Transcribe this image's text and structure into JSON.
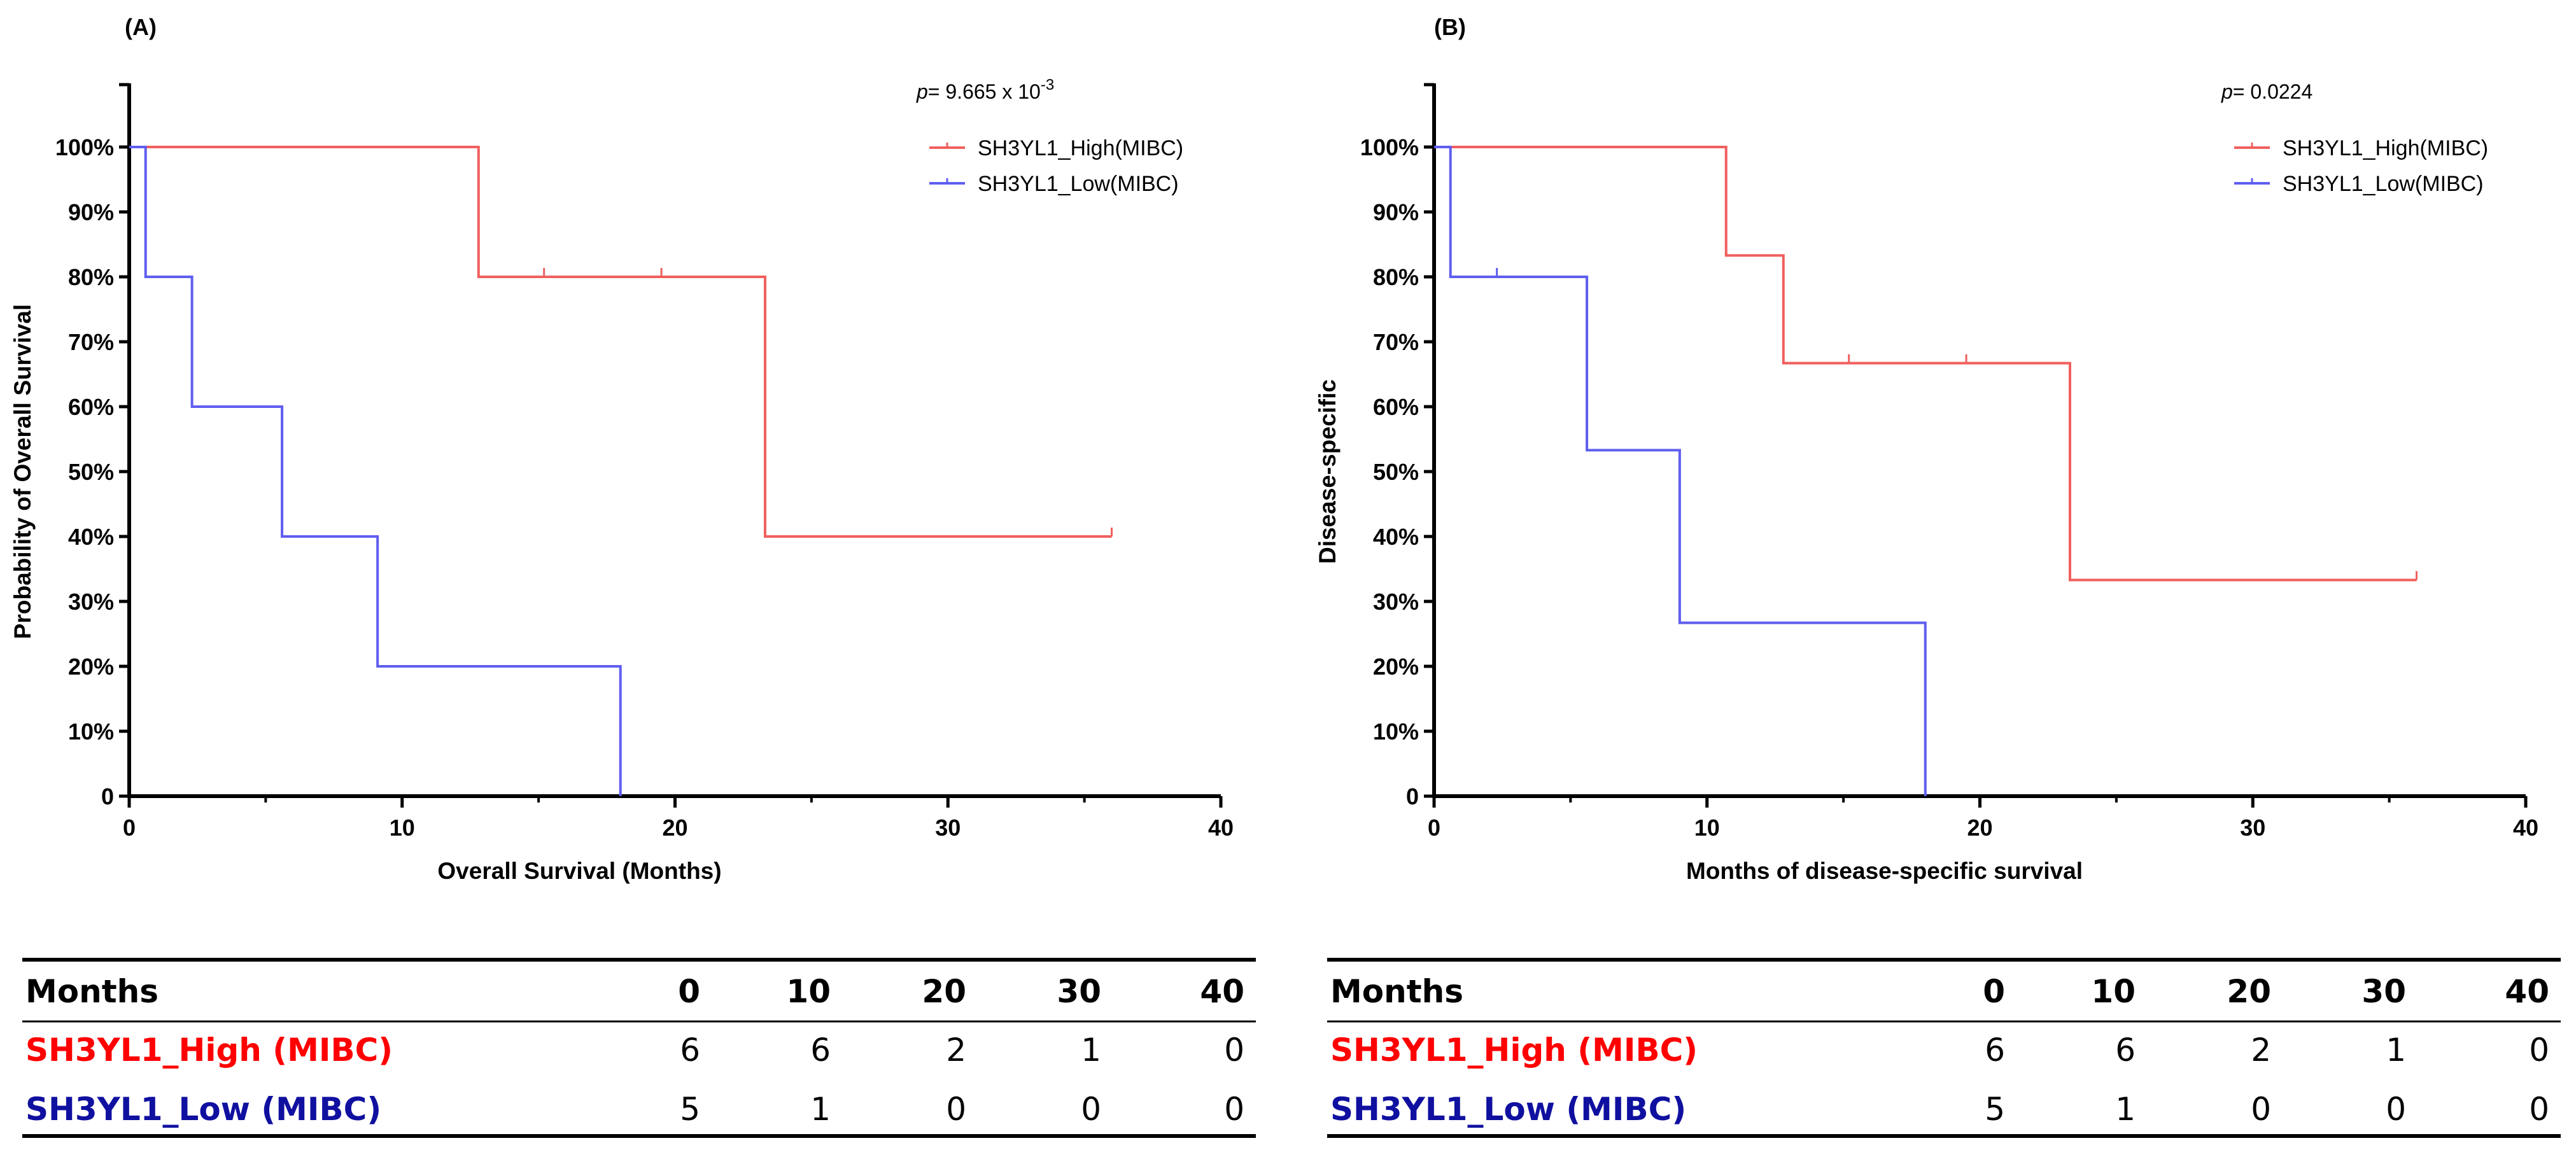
{
  "colors": {
    "high": "#f0605e",
    "low": "#5f5ef0",
    "table_high": "#ff0000",
    "table_low": "#1010a0",
    "axis": "#000000"
  },
  "chart_data": [
    {
      "type": "line",
      "panel_label": "(A)",
      "xlabel": "Overall Survival (Months)",
      "ylabel": "Probability of Overall Survival",
      "xlim": [
        0,
        40
      ],
      "ylim": [
        0,
        100
      ],
      "x_ticks": [
        "0",
        "10",
        "20",
        "30",
        "40"
      ],
      "y_ticks": [
        "0",
        "10%",
        "20%",
        "30%",
        "40%",
        "50%",
        "60%",
        "70%",
        "80%",
        "90%",
        "100%"
      ],
      "p_label": "p",
      "p_value_text": "= 9.665 x 10",
      "p_value_exp": "-3",
      "legend_position": "top-right",
      "grid": false,
      "series": [
        {
          "name": "SH3YL1_High(MIBC)",
          "color": "high",
          "steps": [
            [
              0,
              100
            ],
            [
              12.8,
              80
            ],
            [
              23.3,
              40
            ],
            [
              36,
              40
            ]
          ],
          "censor": [
            [
              15.2,
              80
            ],
            [
              19.5,
              80
            ],
            [
              36,
              40
            ]
          ]
        },
        {
          "name": "SH3YL1_Low(MIBC)",
          "color": "low",
          "steps": [
            [
              0,
              100
            ],
            [
              0.6,
              80
            ],
            [
              2.3,
              60
            ],
            [
              5.6,
              40
            ],
            [
              9.1,
              20
            ],
            [
              18,
              0
            ],
            [
              18,
              0
            ]
          ],
          "censor": [
            [
              0.6,
              80
            ],
            [
              2.3,
              60
            ],
            [
              9.1,
              20
            ]
          ]
        }
      ]
    },
    {
      "type": "line",
      "panel_label": "(B)",
      "xlabel": "Months of disease-specific survival",
      "ylabel": "Disease-specific",
      "xlim": [
        0,
        40
      ],
      "ylim": [
        0,
        100
      ],
      "x_ticks": [
        "0",
        "10",
        "20",
        "30",
        "40"
      ],
      "y_ticks": [
        "0",
        "10%",
        "20%",
        "30%",
        "40%",
        "50%",
        "60%",
        "70%",
        "80%",
        "90%",
        "100%"
      ],
      "p_label": "p",
      "p_value_text": "= 0.0224",
      "p_value_exp": "",
      "legend_position": "top-right",
      "grid": false,
      "series": [
        {
          "name": "SH3YL1_High(MIBC)",
          "color": "high",
          "steps": [
            [
              0,
              100
            ],
            [
              10.7,
              83.3
            ],
            [
              12.8,
              66.7
            ],
            [
              23.3,
              33.3
            ],
            [
              36,
              33.3
            ]
          ],
          "censor": [
            [
              15.2,
              66.7
            ],
            [
              19.5,
              66.7
            ],
            [
              36,
              33.3
            ]
          ]
        },
        {
          "name": "SH3YL1_Low(MIBC)",
          "color": "low",
          "steps": [
            [
              0,
              100
            ],
            [
              0.6,
              80
            ],
            [
              5.6,
              53.3
            ],
            [
              9.0,
              26.7
            ],
            [
              18,
              0
            ],
            [
              18,
              0
            ]
          ],
          "censor": [
            [
              2.3,
              80
            ],
            [
              9.0,
              26.7
            ]
          ]
        }
      ]
    }
  ],
  "risk_tables": [
    {
      "header": [
        "Months",
        "0",
        "10",
        "20",
        "30",
        "40"
      ],
      "rows": [
        {
          "label": "SH3YL1_High (MIBC)",
          "color": "table_high",
          "values": [
            "6",
            "6",
            "2",
            "1",
            "0"
          ]
        },
        {
          "label": "SH3YL1_Low (MIBC)",
          "color": "table_low",
          "values": [
            "5",
            "1",
            "0",
            "0",
            "0"
          ]
        }
      ]
    },
    {
      "header": [
        "Months",
        "0",
        "10",
        "20",
        "30",
        "40"
      ],
      "rows": [
        {
          "label": "SH3YL1_High (MIBC)",
          "color": "table_high",
          "values": [
            "6",
            "6",
            "2",
            "1",
            "0"
          ]
        },
        {
          "label": "SH3YL1_Low (MIBC)",
          "color": "table_low",
          "values": [
            "5",
            "1",
            "0",
            "0",
            "0"
          ]
        }
      ]
    }
  ]
}
